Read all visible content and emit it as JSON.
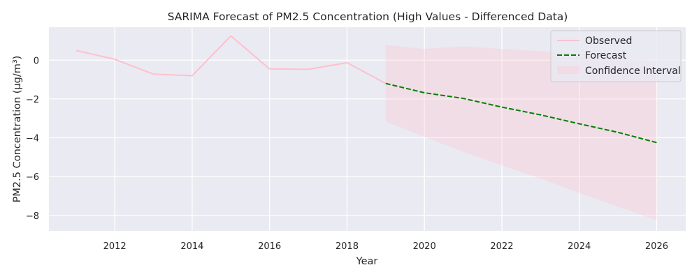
{
  "chart_data": {
    "type": "line",
    "title": "SARIMA Forecast of PM2.5 Concentration (High Values - Differenced Data)",
    "xlabel": "Year",
    "ylabel": "PM2.5 Concentration (µg/m³)",
    "xlim": [
      2010.3,
      2026.75
    ],
    "ylim": [
      -8.8,
      1.7
    ],
    "x_ticks": [
      2012,
      2014,
      2016,
      2018,
      2020,
      2022,
      2024,
      2026
    ],
    "y_ticks": [
      0,
      -2,
      -4,
      -6,
      -8
    ],
    "x_tick_labels": [
      "2012",
      "2014",
      "2016",
      "2018",
      "2020",
      "2022",
      "2024",
      "2026"
    ],
    "y_tick_labels": [
      "0",
      "−2",
      "−4",
      "−6",
      "−8"
    ],
    "grid": true,
    "legend_position": "top-right",
    "series": [
      {
        "name": "Observed",
        "style": "solid",
        "color": "#ffc0cb",
        "x": [
          2011,
          2012,
          2013,
          2014,
          2015,
          2016,
          2017,
          2018,
          2019
        ],
        "y": [
          0.5,
          0.05,
          -0.72,
          -0.8,
          1.25,
          -0.45,
          -0.47,
          -0.13,
          -1.2
        ]
      },
      {
        "name": "Forecast",
        "style": "dashed",
        "color": "#008000",
        "x": [
          2019,
          2020,
          2021,
          2022,
          2023,
          2024,
          2025,
          2026
        ],
        "y": [
          -1.2,
          -1.68,
          -1.97,
          -2.42,
          -2.82,
          -3.28,
          -3.72,
          -4.25
        ]
      },
      {
        "name": "Confidence Interval",
        "style": "band",
        "color": "#ffc0cb",
        "x": [
          2019,
          2020,
          2021,
          2022,
          2023,
          2024,
          2025,
          2026
        ],
        "lower": [
          -3.17,
          -3.95,
          -4.72,
          -5.42,
          -6.1,
          -6.85,
          -7.55,
          -8.25
        ],
        "upper": [
          0.78,
          0.58,
          0.72,
          0.58,
          0.47,
          0.32,
          0.12,
          -0.05
        ]
      }
    ]
  }
}
